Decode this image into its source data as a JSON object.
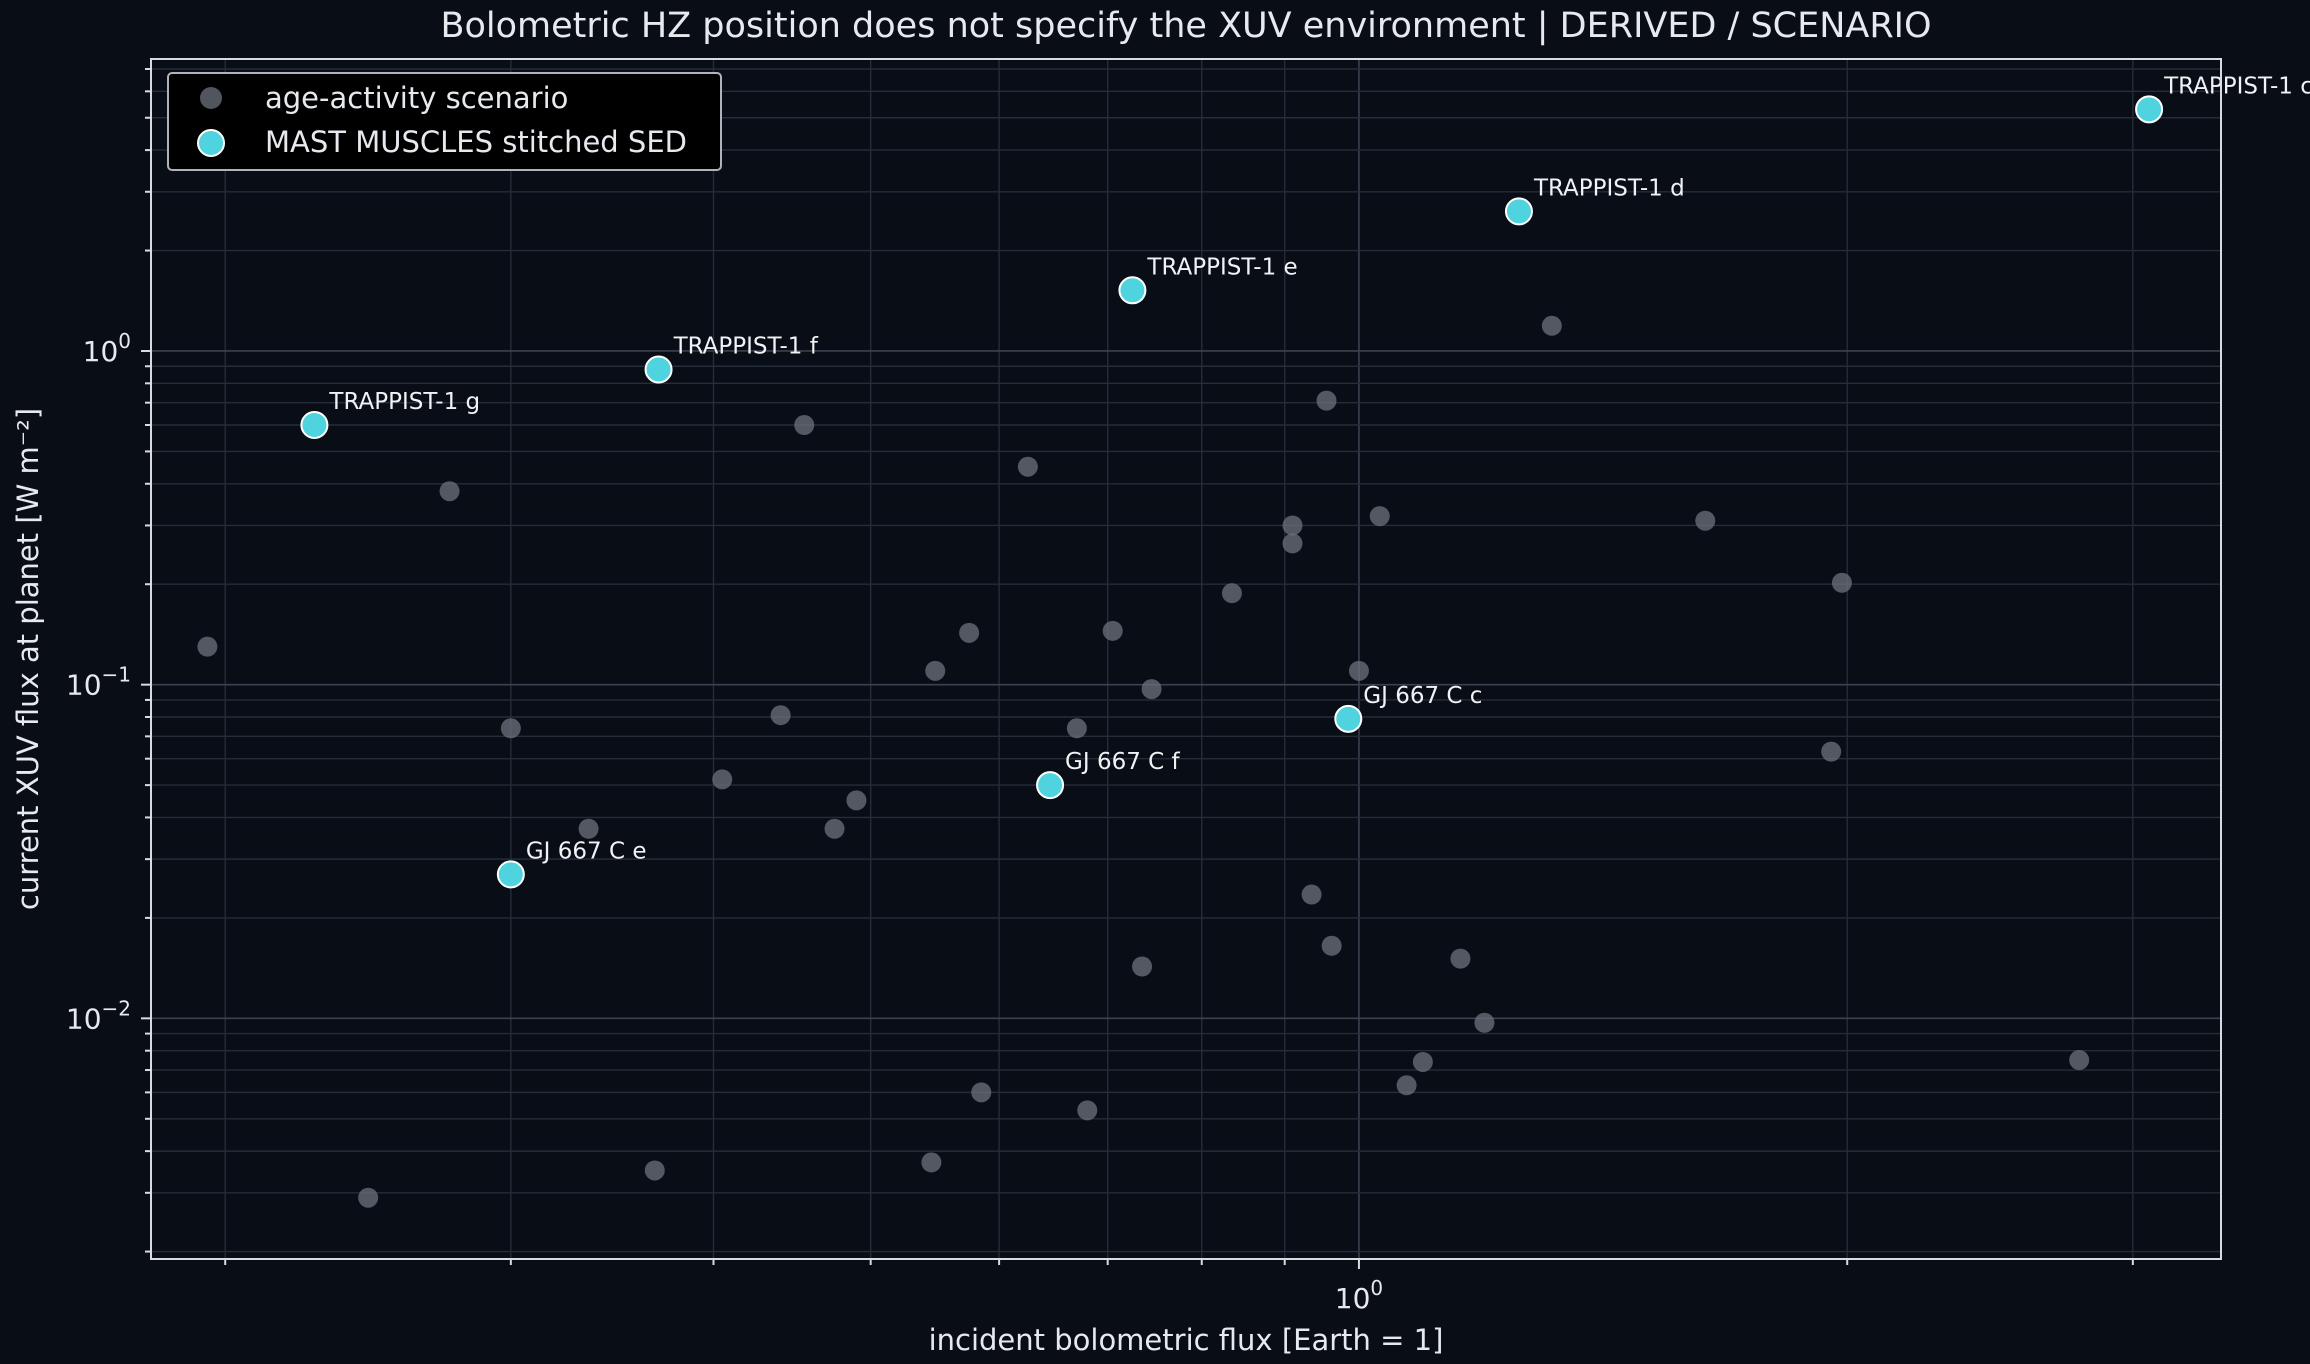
{
  "chart_data": {
    "type": "scatter",
    "title": "Bolometric HZ position does not specify the XUV environment | DERIVED / SCENARIO",
    "xlabel": "incident bolometric flux [Earth = 1]",
    "ylabel": "current XUV flux at planet [W m⁻²]",
    "xscale": "log",
    "yscale": "log",
    "xlim": [
      0.18,
      3.4
    ],
    "ylim": [
      0.0019,
      7.5
    ],
    "grid": "on",
    "legend_position": "top-left",
    "x_tick_labels": [
      {
        "value": 1,
        "base": "10",
        "exp": "0"
      }
    ],
    "y_tick_labels": [
      {
        "value": 1,
        "base": "10",
        "exp": "0"
      },
      {
        "value": 0.1,
        "base": "10",
        "exp": "−1"
      },
      {
        "value": 0.01,
        "base": "10",
        "exp": "−2"
      }
    ],
    "series": [
      {
        "name": "age-activity scenario",
        "color": "#6c717e",
        "points": [
          {
            "x": 0.195,
            "y": 0.13
          },
          {
            "x": 0.245,
            "y": 0.0029
          },
          {
            "x": 0.275,
            "y": 0.38
          },
          {
            "x": 0.3,
            "y": 0.074
          },
          {
            "x": 0.335,
            "y": 0.037
          },
          {
            "x": 0.368,
            "y": 0.0035
          },
          {
            "x": 0.405,
            "y": 0.052
          },
          {
            "x": 0.44,
            "y": 0.081
          },
          {
            "x": 0.455,
            "y": 0.6
          },
          {
            "x": 0.475,
            "y": 0.037
          },
          {
            "x": 0.49,
            "y": 0.045
          },
          {
            "x": 0.545,
            "y": 0.0037
          },
          {
            "x": 0.548,
            "y": 0.11
          },
          {
            "x": 0.575,
            "y": 0.143
          },
          {
            "x": 0.585,
            "y": 0.006
          },
          {
            "x": 0.625,
            "y": 0.45
          },
          {
            "x": 0.67,
            "y": 0.074
          },
          {
            "x": 0.68,
            "y": 0.0053
          },
          {
            "x": 0.705,
            "y": 0.145
          },
          {
            "x": 0.735,
            "y": 0.0143
          },
          {
            "x": 0.745,
            "y": 0.097
          },
          {
            "x": 0.835,
            "y": 0.188
          },
          {
            "x": 0.91,
            "y": 0.3
          },
          {
            "x": 0.91,
            "y": 0.265
          },
          {
            "x": 0.935,
            "y": 0.0235
          },
          {
            "x": 0.955,
            "y": 0.71
          },
          {
            "x": 0.962,
            "y": 0.0165
          },
          {
            "x": 1.0,
            "y": 0.11
          },
          {
            "x": 1.03,
            "y": 0.32
          },
          {
            "x": 1.07,
            "y": 0.0063
          },
          {
            "x": 1.095,
            "y": 0.0074
          },
          {
            "x": 1.155,
            "y": 0.0151
          },
          {
            "x": 1.195,
            "y": 0.0097
          },
          {
            "x": 1.315,
            "y": 1.19
          },
          {
            "x": 1.635,
            "y": 0.31
          },
          {
            "x": 1.955,
            "y": 0.063
          },
          {
            "x": 1.985,
            "y": 0.202
          },
          {
            "x": 2.78,
            "y": 0.0075
          }
        ]
      },
      {
        "name": "MAST MUSCLES stitched SED",
        "color": "#4fd3de",
        "points": [
          {
            "x": 0.227,
            "y": 0.6,
            "label": "TRAPPIST-1 g"
          },
          {
            "x": 0.3,
            "y": 0.027,
            "label": "GJ 667 C e"
          },
          {
            "x": 0.37,
            "y": 0.88,
            "label": "TRAPPIST-1 f"
          },
          {
            "x": 0.645,
            "y": 0.05,
            "label": "GJ 667 C f"
          },
          {
            "x": 0.725,
            "y": 1.52,
            "label": "TRAPPIST-1 e"
          },
          {
            "x": 0.985,
            "y": 0.079,
            "label": "GJ 667 C c"
          },
          {
            "x": 1.255,
            "y": 2.62,
            "label": "TRAPPIST-1 d"
          },
          {
            "x": 3.07,
            "y": 5.3,
            "label": "TRAPPIST-1 c"
          }
        ]
      }
    ]
  }
}
